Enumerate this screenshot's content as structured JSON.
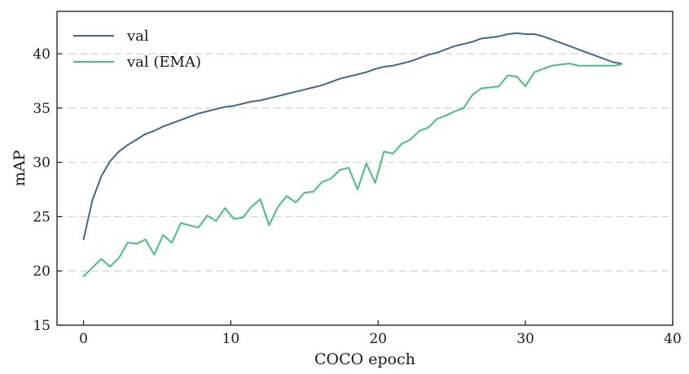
{
  "chart_data": {
    "type": "line",
    "title": "",
    "xlabel": "COCO epoch",
    "ylabel": "mAP",
    "xlim": [
      -1.8,
      40
    ],
    "ylim": [
      15,
      43.9
    ],
    "xticks": [
      0,
      10,
      20,
      30,
      40
    ],
    "yticks": [
      15,
      20,
      25,
      30,
      35,
      40
    ],
    "grid": "horizontal dashed",
    "legend_position": "top-left",
    "series": [
      {
        "name": "val",
        "color": "#3e6a8f",
        "x": [
          0,
          0.6,
          1.2,
          1.8,
          2.4,
          3.0,
          3.6,
          4.2,
          4.8,
          5.4,
          6.0,
          6.6,
          7.2,
          7.8,
          8.4,
          9.0,
          9.6,
          10.2,
          10.8,
          11.4,
          12.0,
          12.6,
          13.2,
          13.8,
          14.4,
          15.0,
          15.6,
          16.2,
          16.8,
          17.4,
          18.0,
          18.6,
          19.2,
          19.8,
          20.4,
          21.0,
          21.6,
          22.2,
          22.8,
          23.4,
          24.0,
          24.6,
          25.2,
          25.8,
          26.4,
          27.0,
          27.6,
          28.2,
          28.8,
          29.4,
          30.0,
          30.6,
          31.2,
          31.8,
          32.4,
          33.0,
          33.6,
          34.2,
          34.8,
          35.4,
          36.0,
          36.5
        ],
        "y": [
          22.9,
          26.5,
          28.7,
          30.1,
          31.0,
          31.6,
          32.1,
          32.6,
          32.9,
          33.3,
          33.6,
          33.9,
          34.2,
          34.5,
          34.7,
          34.9,
          35.1,
          35.2,
          35.4,
          35.6,
          35.7,
          35.9,
          36.1,
          36.3,
          36.5,
          36.7,
          36.9,
          37.1,
          37.4,
          37.7,
          37.9,
          38.1,
          38.3,
          38.6,
          38.8,
          38.9,
          39.1,
          39.3,
          39.6,
          39.9,
          40.1,
          40.4,
          40.7,
          40.9,
          41.1,
          41.4,
          41.5,
          41.6,
          41.8,
          41.9,
          41.8,
          41.8,
          41.6,
          41.3,
          41.0,
          40.7,
          40.4,
          40.1,
          39.8,
          39.5,
          39.2,
          39.1
        ]
      },
      {
        "name": "val (EMA)",
        "color": "#47c07f",
        "x": [
          0,
          0.6,
          1.2,
          1.8,
          2.4,
          3.0,
          3.6,
          4.2,
          4.8,
          5.4,
          6.0,
          6.6,
          7.2,
          7.8,
          8.4,
          9.0,
          9.6,
          10.2,
          10.8,
          11.4,
          12.0,
          12.6,
          13.2,
          13.8,
          14.4,
          15.0,
          15.6,
          16.2,
          16.8,
          17.4,
          18.0,
          18.6,
          19.2,
          19.8,
          20.4,
          21.0,
          21.6,
          22.2,
          22.8,
          23.4,
          24.0,
          24.6,
          25.2,
          25.8,
          26.4,
          27.0,
          27.6,
          28.2,
          28.8,
          29.4,
          30.0,
          30.6,
          31.2,
          31.8,
          32.4,
          33.0,
          33.6,
          34.2,
          34.8,
          35.4,
          36.0,
          36.5
        ],
        "y": [
          19.5,
          20.3,
          21.1,
          20.4,
          21.2,
          22.6,
          22.5,
          22.9,
          21.5,
          23.3,
          22.6,
          24.4,
          24.2,
          24.0,
          25.1,
          24.6,
          25.8,
          24.8,
          24.9,
          25.9,
          26.6,
          24.2,
          25.9,
          26.9,
          26.3,
          27.2,
          27.3,
          28.2,
          28.5,
          29.3,
          29.5,
          27.5,
          29.9,
          28.1,
          31.0,
          30.8,
          31.7,
          32.1,
          32.9,
          33.2,
          34.0,
          34.3,
          34.7,
          35.0,
          36.2,
          36.8,
          36.9,
          37.0,
          38.0,
          37.9,
          37.0,
          38.3,
          38.6,
          38.9,
          39.0,
          39.1,
          38.9,
          38.9,
          38.9,
          38.9,
          38.9,
          39.0
        ]
      }
    ]
  }
}
